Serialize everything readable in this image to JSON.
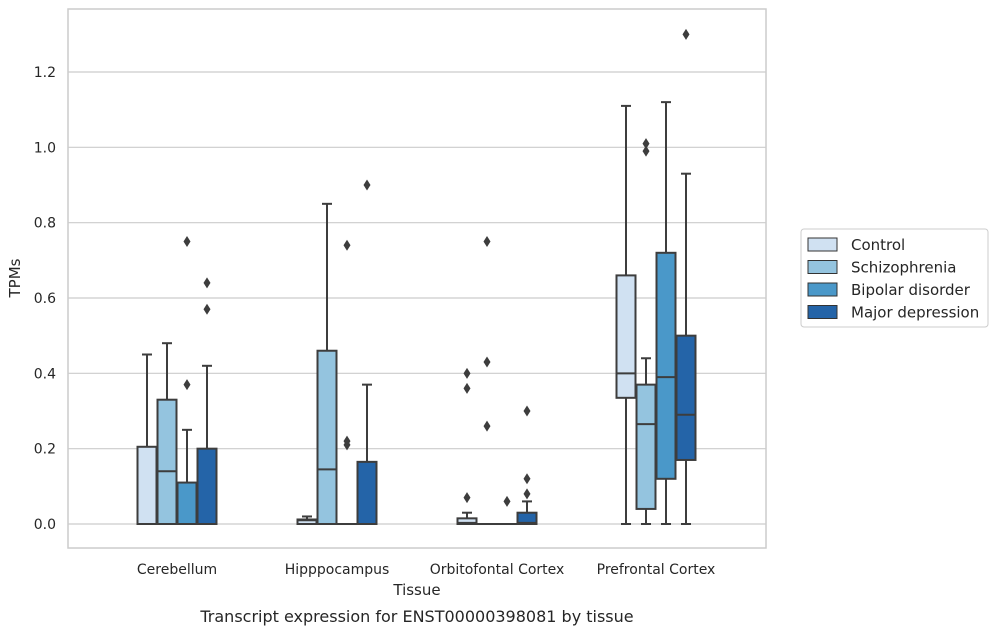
{
  "chart_data": {
    "type": "box",
    "title": "",
    "xlabel": "Tissue",
    "ylabel": "TPMs",
    "caption": "Transcript expression for ENST00000398081 by tissue",
    "ylim": [
      -0.065,
      1.375
    ],
    "yticks": [
      0.0,
      0.2,
      0.4,
      0.6,
      0.8,
      1.0,
      1.2
    ],
    "ytick_labels": [
      "0.0",
      "0.2",
      "0.4",
      "0.6",
      "0.8",
      "1.0",
      "1.2"
    ],
    "grid": "horizontal",
    "legend_position": "right",
    "categories": [
      "Cerebellum",
      "Hipppocampus",
      "Orbitofontal Cortex",
      "Prefrontal Cortex"
    ],
    "series": [
      {
        "name": "Control",
        "color": "#d0e1f2",
        "boxes": [
          {
            "whislo": 0,
            "q1": 0,
            "med": 0,
            "q3": 0.205,
            "whishi": 0.45,
            "fliers": []
          },
          {
            "whislo": 0,
            "q1": 0,
            "med": 0.01,
            "q3": 0.012,
            "whishi": 0.02,
            "fliers": []
          },
          {
            "whislo": 0,
            "q1": 0,
            "med": 0.003,
            "q3": 0.015,
            "whishi": 0.03,
            "fliers": [
              0.07,
              0.36,
              0.4
            ]
          },
          {
            "whislo": 0,
            "q1": 0.335,
            "med": 0.4,
            "q3": 0.66,
            "whishi": 1.11,
            "fliers": []
          }
        ]
      },
      {
        "name": "Schizophrenia",
        "color": "#94c4df",
        "boxes": [
          {
            "whislo": 0,
            "q1": 0,
            "med": 0.14,
            "q3": 0.33,
            "whishi": 0.48,
            "fliers": []
          },
          {
            "whislo": 0,
            "q1": 0,
            "med": 0.145,
            "q3": 0.46,
            "whishi": 0.85,
            "fliers": []
          },
          {
            "whislo": 0,
            "q1": 0,
            "med": 0,
            "q3": 0,
            "whishi": 0,
            "fliers": [
              0.26,
              0.43,
              0.75
            ]
          },
          {
            "whislo": 0,
            "q1": 0.04,
            "med": 0.265,
            "q3": 0.37,
            "whishi": 0.44,
            "fliers": [
              0.99,
              1.01
            ]
          }
        ]
      },
      {
        "name": "Bipolar disorder",
        "color": "#4a98c9",
        "boxes": [
          {
            "whislo": 0,
            "q1": 0,
            "med": 0,
            "q3": 0.11,
            "whishi": 0.25,
            "fliers": [
              0.37,
              0.75
            ]
          },
          {
            "whislo": 0,
            "q1": 0,
            "med": 0,
            "q3": 0,
            "whishi": 0,
            "fliers": [
              0.21,
              0.22,
              0.74
            ]
          },
          {
            "whislo": 0,
            "q1": 0,
            "med": 0,
            "q3": 0,
            "whishi": 0,
            "fliers": [
              0.06
            ]
          },
          {
            "whislo": 0,
            "q1": 0.12,
            "med": 0.39,
            "q3": 0.72,
            "whishi": 1.12,
            "fliers": []
          }
        ]
      },
      {
        "name": "Major depression",
        "color": "#2464a8",
        "boxes": [
          {
            "whislo": 0,
            "q1": 0,
            "med": 0,
            "q3": 0.2,
            "whishi": 0.42,
            "fliers": [
              0.57,
              0.64
            ]
          },
          {
            "whislo": 0,
            "q1": 0,
            "med": 0,
            "q3": 0.165,
            "whishi": 0.37,
            "fliers": [
              0.9
            ]
          },
          {
            "whislo": 0,
            "q1": 0,
            "med": 0.003,
            "q3": 0.03,
            "whishi": 0.06,
            "fliers": [
              0.08,
              0.12,
              0.3
            ]
          },
          {
            "whislo": 0,
            "q1": 0.17,
            "med": 0.29,
            "q3": 0.5,
            "whishi": 0.93,
            "fliers": [
              1.3
            ]
          }
        ]
      }
    ]
  },
  "colors": {
    "edge": "#3d3d3d",
    "grid": "#cccccc",
    "frame": "#cccccc"
  }
}
